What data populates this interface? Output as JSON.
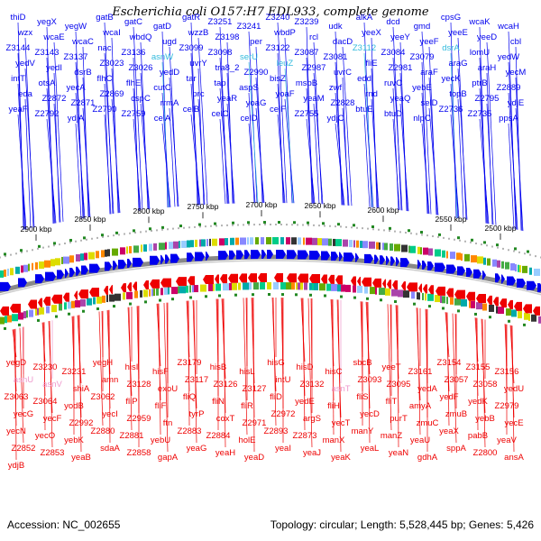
{
  "title": "Escherichia coli O157:H7 EDL933, complete genome",
  "footer": {
    "accession_label": "Accession:",
    "accession_value": "NC_002655",
    "topology_label": "Topology:",
    "topology_value": "circular;",
    "length_label": "Length:",
    "length_value": "5,528,445 bp;",
    "genes_label": "Genes:",
    "genes_value": "5,426"
  },
  "colors": {
    "forward": "#0000ee",
    "reverse": "#ee0000",
    "rna": "#33bbdd",
    "rna_reverse": "#ee99cc",
    "backbone": "#888888",
    "tick": "#000000",
    "marker": "#228822"
  },
  "scale_labels": [
    "2500 kbp",
    "2550 kbp",
    "2600 kbp",
    "2650 kbp",
    "2700 kbp",
    "2750 kbp",
    "2800 kbp",
    "2850 kbp",
    "2900 kbp"
  ],
  "forward_labels": [
    "thiD",
    "yegX",
    "yegW",
    "gatB",
    "gatC",
    "gatD",
    "gatR",
    "Z3251",
    "Z3241",
    "Z3240",
    "Z3239",
    "udk",
    "alkA",
    "dcd",
    "gmd",
    "cpsG",
    "wcaK",
    "wcaH",
    "wzx",
    "wcaE",
    "wcaC",
    "wcaI",
    "wbdQ",
    "ugd",
    "wzzB",
    "Z3198",
    "per",
    "wbdP",
    "rcl",
    "dacD",
    "yeeX",
    "yeeY",
    "yeeF",
    "yeeE",
    "yeeD",
    "cbl",
    "Z3144",
    "Z3143",
    "Z3137",
    "nac",
    "Z3136",
    "asnW",
    "Z3099",
    "Z3098",
    "serU",
    "Z3122",
    "Z3087",
    "Z3081",
    "Z3112",
    "Z3084",
    "Z3079",
    "dsrA",
    "lomU",
    "yedW",
    "yedV",
    "yedI",
    "dsrB",
    "Z3023",
    "Z3026",
    "yedD",
    "uvrY",
    "tra8_2",
    "Z2990",
    "leuZ",
    "Z2987",
    "uvrC",
    "fliE",
    "Z2981",
    "araF",
    "araG",
    "araH",
    "yecM",
    "intT",
    "otsA",
    "yecA",
    "flhC",
    "flhE",
    "cutC",
    "tar",
    "tap",
    "aspS",
    "bisZ",
    "msbB",
    "zwf",
    "edd",
    "ruvC",
    "yebE",
    "yecK",
    "ptrB",
    "Z2889",
    "eda",
    "Z2872",
    "Z2871",
    "Z2869",
    "cspC",
    "rrmA",
    "prc",
    "yeaR",
    "yoaG",
    "yoaF",
    "yeaM",
    "Z2828",
    "rnd",
    "yeaQ",
    "selD",
    "topB",
    "Z2795",
    "ydjE",
    "yeaF",
    "Z2792",
    "ydjA",
    "Z2790",
    "Z2759",
    "celA",
    "celB",
    "celC",
    "celD",
    "celF",
    "Z2755",
    "ydjC",
    "btuE",
    "btuD",
    "nlpC",
    "Z2736",
    "Z2735",
    "ppsA"
  ],
  "reverse_labels": [
    "yegD",
    "Z3230",
    "Z3231",
    "yegH",
    "hisI",
    "hisF",
    "Z3179",
    "hisB",
    "hisL",
    "hisG",
    "hisD",
    "hisC",
    "sbcB",
    "yeeT",
    "Z3161",
    "Z3154",
    "Z3155",
    "Z3156",
    "asnU",
    "asnV",
    "shiA",
    "amn",
    "Z3128",
    "exoU",
    "Z3117",
    "Z3126",
    "Z3127",
    "intU",
    "Z3132",
    "asnT",
    "Z3093",
    "Z3095",
    "yedA",
    "Z3057",
    "Z3058",
    "yedU",
    "Z3063",
    "Z3064",
    "yodB",
    "Z3062",
    "fliP",
    "fliF",
    "fliQ",
    "fliN",
    "fliR",
    "fliD",
    "yedE",
    "fliH",
    "fliS",
    "fliT",
    "amyA",
    "yedF",
    "yedK",
    "Z2979",
    "yecG",
    "yecF",
    "Z2992",
    "yecI",
    "Z2959",
    "ftn",
    "tyrP",
    "coxT",
    "Z2971",
    "Z2972",
    "argS",
    "yecT",
    "yecD",
    "purT",
    "zmuC",
    "zmuB",
    "yebB",
    "yecE",
    "yecN",
    "yecO",
    "yebK",
    "Z2880",
    "Z2881",
    "yebU",
    "Z2883",
    "Z2884",
    "holE",
    "Z2893",
    "Z2873",
    "manX",
    "manY",
    "manZ",
    "yeaU",
    "yeaX",
    "pabB",
    "yeaV",
    "Z2852",
    "Z2853",
    "yeaB",
    "sdaA",
    "Z2858",
    "gapA",
    "yeaG",
    "yeaH",
    "yeaD",
    "yeaI",
    "yeaJ",
    "yeaK",
    "yeaL",
    "yeaN",
    "gdhA",
    "sppA",
    "Z2800",
    "ansA",
    "ydjB"
  ]
}
